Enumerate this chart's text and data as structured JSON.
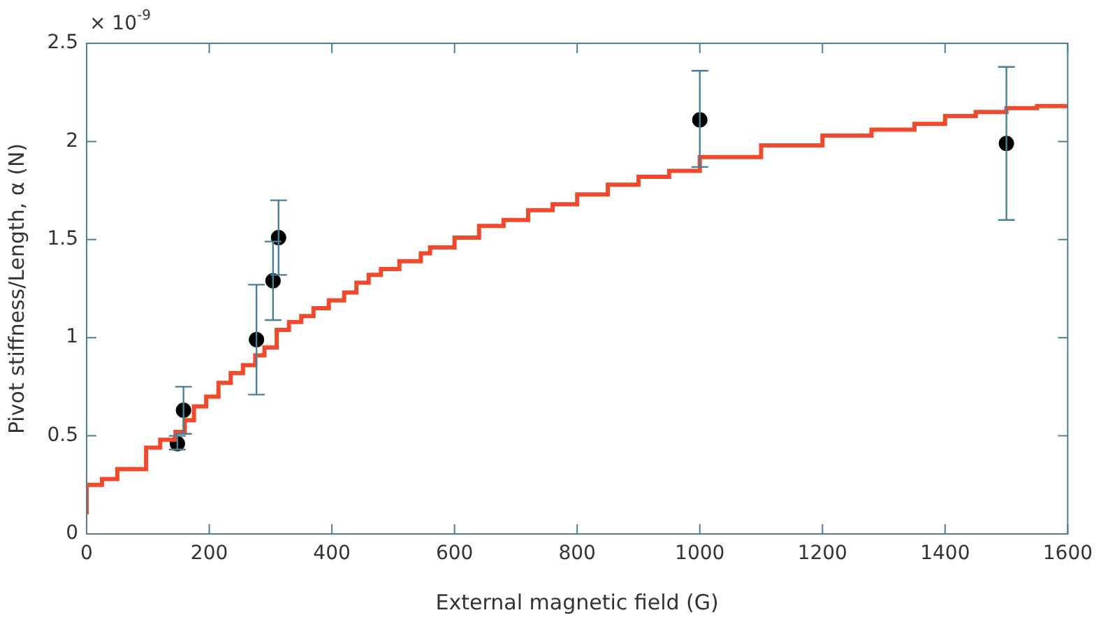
{
  "chart_data": {
    "type": "scatter",
    "xlabel": "External magnetic field (G)",
    "ylabel": "Pivot stiffness/Length, α (N)",
    "annotations": [
      "× 10$^{-9}$"
    ],
    "xlim": [
      0,
      1600
    ],
    "xticks": [
      0,
      200,
      400,
      600,
      800,
      1000,
      1200,
      1400,
      1600
    ],
    "ylim": [
      0,
      2.5
    ],
    "yticks": [
      0,
      0.5,
      1,
      1.5,
      2,
      2.5
    ],
    "grid": false,
    "legend": false,
    "series": [
      {
        "type": "step",
        "color": "#f04a2c",
        "marker": "none",
        "x": [
          0,
          25,
          50,
          97,
          120,
          145,
          160,
          175,
          195,
          215,
          235,
          255,
          275,
          290,
          310,
          330,
          350,
          370,
          395,
          420,
          440,
          460,
          480,
          510,
          545,
          560,
          600,
          640,
          680,
          720,
          760,
          800,
          850,
          900,
          950,
          1000,
          1100,
          1200,
          1280,
          1350,
          1400,
          1450,
          1500,
          1550,
          1600
        ],
        "values": [
          0.1,
          0.25,
          0.28,
          0.33,
          0.44,
          0.48,
          0.52,
          0.58,
          0.65,
          0.7,
          0.77,
          0.82,
          0.86,
          0.91,
          0.95,
          1.04,
          1.08,
          1.11,
          1.15,
          1.19,
          1.23,
          1.28,
          1.32,
          1.35,
          1.39,
          1.43,
          1.46,
          1.51,
          1.57,
          1.6,
          1.65,
          1.68,
          1.73,
          1.78,
          1.82,
          1.85,
          1.92,
          1.98,
          2.03,
          2.06,
          2.09,
          2.13,
          2.15,
          2.17,
          2.18
        ]
      },
      {
        "color": "#000000",
        "marker": "circle",
        "x": [
          148,
          158,
          277,
          304,
          313,
          1000,
          1500
        ],
        "values": [
          0.46,
          0.63,
          0.99,
          1.29,
          1.51,
          2.11,
          1.99
        ],
        "errors": [
          [
            0.43,
            0.5
          ],
          [
            0.51,
            0.75
          ],
          [
            0.71,
            1.27
          ],
          [
            1.09,
            1.49
          ],
          [
            1.32,
            1.7
          ],
          [
            1.87,
            2.36
          ],
          [
            1.6,
            2.38
          ]
        ]
      }
    ]
  }
}
